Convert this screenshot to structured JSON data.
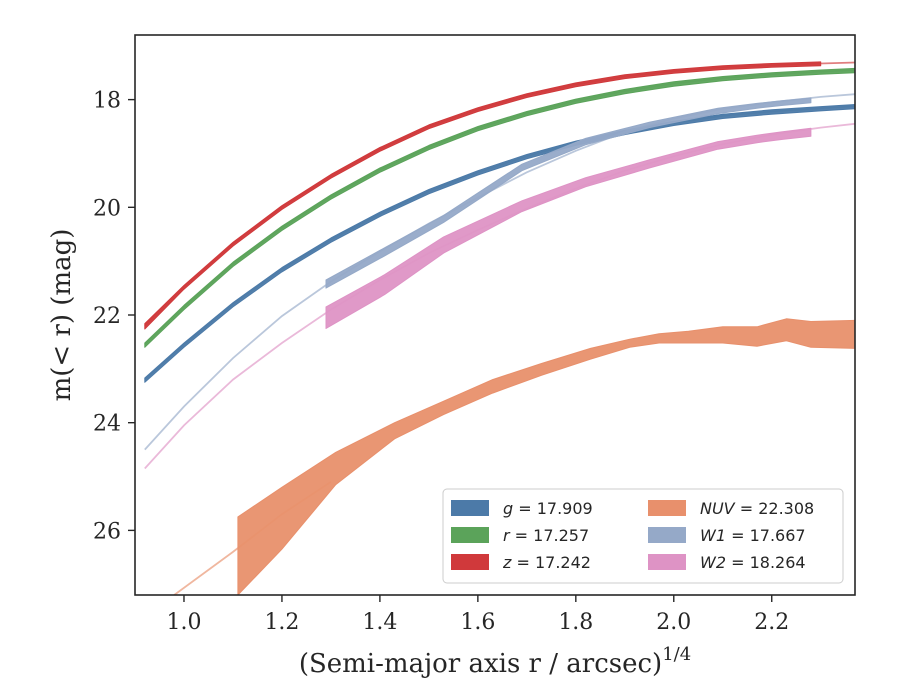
{
  "chart_data": {
    "type": "line",
    "xlabel": "(Semi-major axis r / arcsec)",
    "xlabel_exponent": "1/4",
    "ylabel": "m(< r) (mag)",
    "xlim": [
      0.9,
      2.37
    ],
    "ylim": [
      27.2,
      16.8
    ],
    "y_inverted": true,
    "grid": false,
    "legend_position": "lower right",
    "xticks": [
      1.0,
      1.2,
      1.4,
      1.6,
      1.8,
      2.0,
      2.2
    ],
    "xtick_labels": [
      "1.0",
      "1.2",
      "1.4",
      "1.6",
      "1.8",
      "2.0",
      "2.2"
    ],
    "yticks": [
      18,
      20,
      22,
      24,
      26
    ],
    "ytick_labels": [
      "18",
      "20",
      "22",
      "24",
      "26"
    ],
    "legend_columns": 2,
    "series": [
      {
        "name": "g = 17.909",
        "legend_var": "g",
        "legend_value": "= 17.909",
        "color": "#4c7aa8",
        "model_x": [
          0.92,
          1.0,
          1.1,
          1.2,
          1.3,
          1.4,
          1.5,
          1.6,
          1.7,
          1.8,
          1.9,
          2.0,
          2.1,
          2.2,
          2.3,
          2.37
        ],
        "model_y": [
          23.2,
          22.55,
          21.8,
          21.15,
          20.6,
          20.12,
          19.7,
          19.35,
          19.05,
          18.8,
          18.6,
          18.43,
          18.3,
          18.22,
          18.16,
          18.12
        ],
        "data_x": [
          0.92,
          1.0,
          1.1,
          1.2,
          1.3,
          1.4,
          1.5,
          1.6,
          1.7,
          1.8,
          1.9,
          2.0,
          2.1,
          2.2,
          2.3,
          2.37
        ],
        "data_lo": [
          23.17,
          22.52,
          21.77,
          21.12,
          20.57,
          20.09,
          19.67,
          19.32,
          19.02,
          18.77,
          18.57,
          18.4,
          18.27,
          18.19,
          18.13,
          18.09
        ],
        "data_hi": [
          23.25,
          22.6,
          21.85,
          21.2,
          20.65,
          20.17,
          19.75,
          19.4,
          19.1,
          18.85,
          18.65,
          18.48,
          18.35,
          18.27,
          18.21,
          18.17
        ]
      },
      {
        "name": "r = 17.257",
        "legend_var": "r",
        "legend_value": "= 17.257",
        "color": "#5ba35a",
        "model_x": [
          0.92,
          1.0,
          1.1,
          1.2,
          1.3,
          1.4,
          1.5,
          1.6,
          1.7,
          1.8,
          1.9,
          2.0,
          2.1,
          2.2,
          2.3,
          2.37
        ],
        "model_y": [
          22.55,
          21.85,
          21.05,
          20.38,
          19.8,
          19.3,
          18.88,
          18.53,
          18.25,
          18.02,
          17.84,
          17.7,
          17.6,
          17.53,
          17.48,
          17.45
        ],
        "data_x": [
          0.92,
          1.0,
          1.1,
          1.2,
          1.3,
          1.4,
          1.5,
          1.6,
          1.7,
          1.8,
          1.9,
          2.0,
          2.1,
          2.2,
          2.3,
          2.37
        ],
        "data_lo": [
          22.52,
          21.82,
          21.02,
          20.35,
          19.77,
          19.27,
          18.85,
          18.5,
          18.22,
          17.99,
          17.81,
          17.67,
          17.57,
          17.5,
          17.45,
          17.42
        ],
        "data_hi": [
          22.6,
          21.9,
          21.1,
          20.43,
          19.85,
          19.35,
          18.93,
          18.58,
          18.3,
          18.07,
          17.89,
          17.75,
          17.65,
          17.58,
          17.53,
          17.5
        ]
      },
      {
        "name": "z = 17.242",
        "legend_var": "z",
        "legend_value": "= 17.242",
        "color": "#d0393b",
        "model_x": [
          0.92,
          1.0,
          1.1,
          1.2,
          1.3,
          1.4,
          1.5,
          1.6,
          1.7,
          1.8,
          1.9,
          2.0,
          2.1,
          2.2,
          2.3,
          2.37
        ],
        "model_y": [
          22.2,
          21.48,
          20.68,
          20.0,
          19.42,
          18.92,
          18.5,
          18.18,
          17.92,
          17.72,
          17.57,
          17.47,
          17.4,
          17.36,
          17.33,
          17.31
        ],
        "data_x": [
          0.92,
          1.0,
          1.1,
          1.2,
          1.3,
          1.4,
          1.5,
          1.6,
          1.7,
          1.8,
          1.9,
          2.0,
          2.1,
          2.2,
          2.3
        ],
        "data_lo": [
          22.16,
          21.45,
          20.65,
          19.97,
          19.39,
          18.89,
          18.47,
          18.15,
          17.89,
          17.69,
          17.54,
          17.44,
          17.37,
          17.33,
          17.3
        ],
        "data_hi": [
          22.26,
          21.52,
          20.72,
          20.04,
          19.46,
          18.96,
          18.54,
          18.22,
          17.96,
          17.76,
          17.61,
          17.51,
          17.44,
          17.4,
          17.37
        ]
      },
      {
        "name": "NUV = 22.308",
        "legend_var": "NUV",
        "legend_value": "= 22.308",
        "color": "#e8906c",
        "model_x": [
          0.98,
          1.1,
          1.2,
          1.3
        ],
        "model_y": [
          27.2,
          26.4,
          25.7,
          25.1
        ],
        "data_x": [
          1.11,
          1.2,
          1.31,
          1.43,
          1.53,
          1.63,
          1.73,
          1.83,
          1.91,
          1.97,
          2.03,
          2.1,
          2.17,
          2.23,
          2.28,
          2.37
        ],
        "data_lo": [
          25.75,
          25.2,
          24.55,
          24.0,
          23.6,
          23.2,
          22.9,
          22.62,
          22.45,
          22.35,
          22.3,
          22.22,
          22.22,
          22.07,
          22.12,
          22.1
        ],
        "data_hi": [
          27.2,
          26.35,
          25.15,
          24.3,
          23.85,
          23.45,
          23.12,
          22.82,
          22.6,
          22.52,
          22.52,
          22.52,
          22.58,
          22.48,
          22.6,
          22.62
        ]
      },
      {
        "name": "W1 = 17.667",
        "legend_var": "W1",
        "legend_value": "= 17.667",
        "color": "#95a9c8",
        "model_x": [
          0.92,
          1.0,
          1.1,
          1.2,
          1.3,
          1.4,
          1.5,
          1.6,
          1.7,
          1.8,
          1.9,
          2.0,
          2.1,
          2.2,
          2.3,
          2.37
        ],
        "model_y": [
          24.5,
          23.7,
          22.8,
          22.02,
          21.38,
          20.82,
          20.3,
          19.82,
          19.35,
          18.95,
          18.6,
          18.35,
          18.17,
          18.05,
          17.95,
          17.9
        ],
        "data_x": [
          1.29,
          1.41,
          1.53,
          1.69,
          1.82,
          1.95,
          2.09,
          2.17,
          2.22,
          2.28
        ],
        "data_lo": [
          21.35,
          20.75,
          20.15,
          19.2,
          18.72,
          18.42,
          18.16,
          18.07,
          18.02,
          17.97
        ],
        "data_hi": [
          21.5,
          20.9,
          20.28,
          19.32,
          18.84,
          18.52,
          18.26,
          18.16,
          18.11,
          18.06
        ]
      },
      {
        "name": "W2 = 18.264",
        "legend_var": "W2",
        "legend_value": "= 18.264",
        "color": "#de93c5",
        "model_x": [
          0.92,
          1.0,
          1.1,
          1.2,
          1.3,
          1.4,
          1.5,
          1.6,
          1.7,
          1.8,
          1.9,
          2.0,
          2.1,
          2.2,
          2.3,
          2.37
        ],
        "model_y": [
          24.85,
          24.05,
          23.2,
          22.52,
          21.9,
          21.35,
          20.85,
          20.42,
          20.02,
          19.65,
          19.32,
          19.05,
          18.83,
          18.65,
          18.52,
          18.45
        ],
        "data_x": [
          1.29,
          1.41,
          1.53,
          1.69,
          1.82,
          1.95,
          2.09,
          2.17,
          2.22,
          2.28
        ],
        "data_lo": [
          21.85,
          21.25,
          20.55,
          19.88,
          19.45,
          19.12,
          18.78,
          18.66,
          18.6,
          18.53
        ],
        "data_hi": [
          22.25,
          21.62,
          20.85,
          20.08,
          19.62,
          19.27,
          18.92,
          18.8,
          18.74,
          18.68
        ]
      }
    ]
  }
}
